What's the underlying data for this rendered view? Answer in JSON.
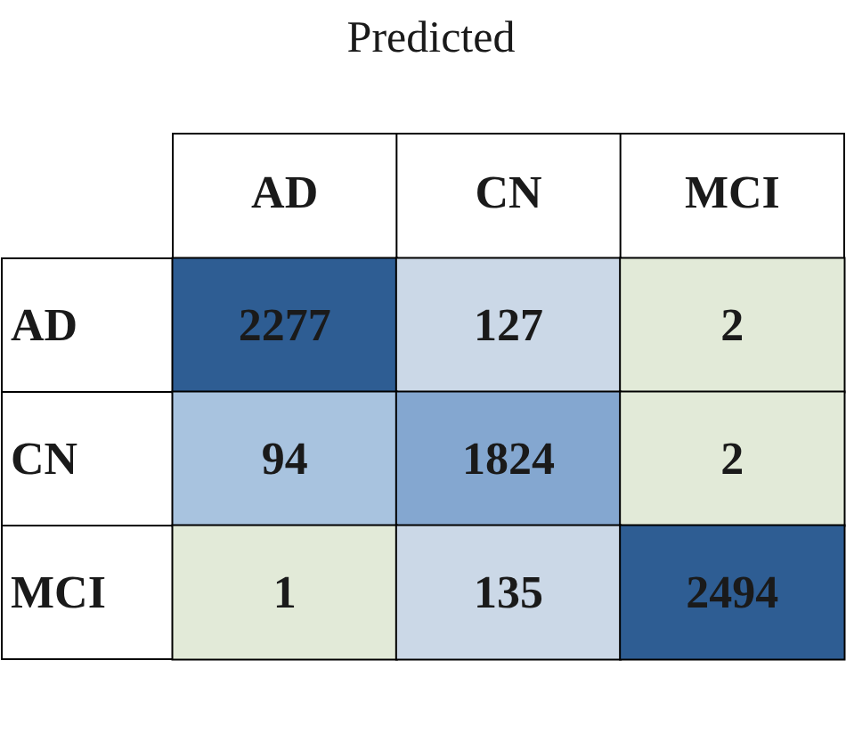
{
  "chart_data": {
    "type": "heatmap",
    "xlabel": "Predicted",
    "categories": [
      "AD",
      "CN",
      "MCI"
    ],
    "y_categories": [
      "AD",
      "CN",
      "MCI"
    ],
    "cells": [
      [
        2277,
        127,
        2
      ],
      [
        94,
        1824,
        2
      ],
      [
        1,
        135,
        2494
      ]
    ],
    "colors": [
      [
        "#2e5d93",
        "#cbd8e7",
        "#e2ead8"
      ],
      [
        "#a8c3df",
        "#84a7d0",
        "#e2ead8"
      ],
      [
        "#e2ead8",
        "#cbd8e7",
        "#2e5d93"
      ]
    ],
    "data_labels": true
  }
}
